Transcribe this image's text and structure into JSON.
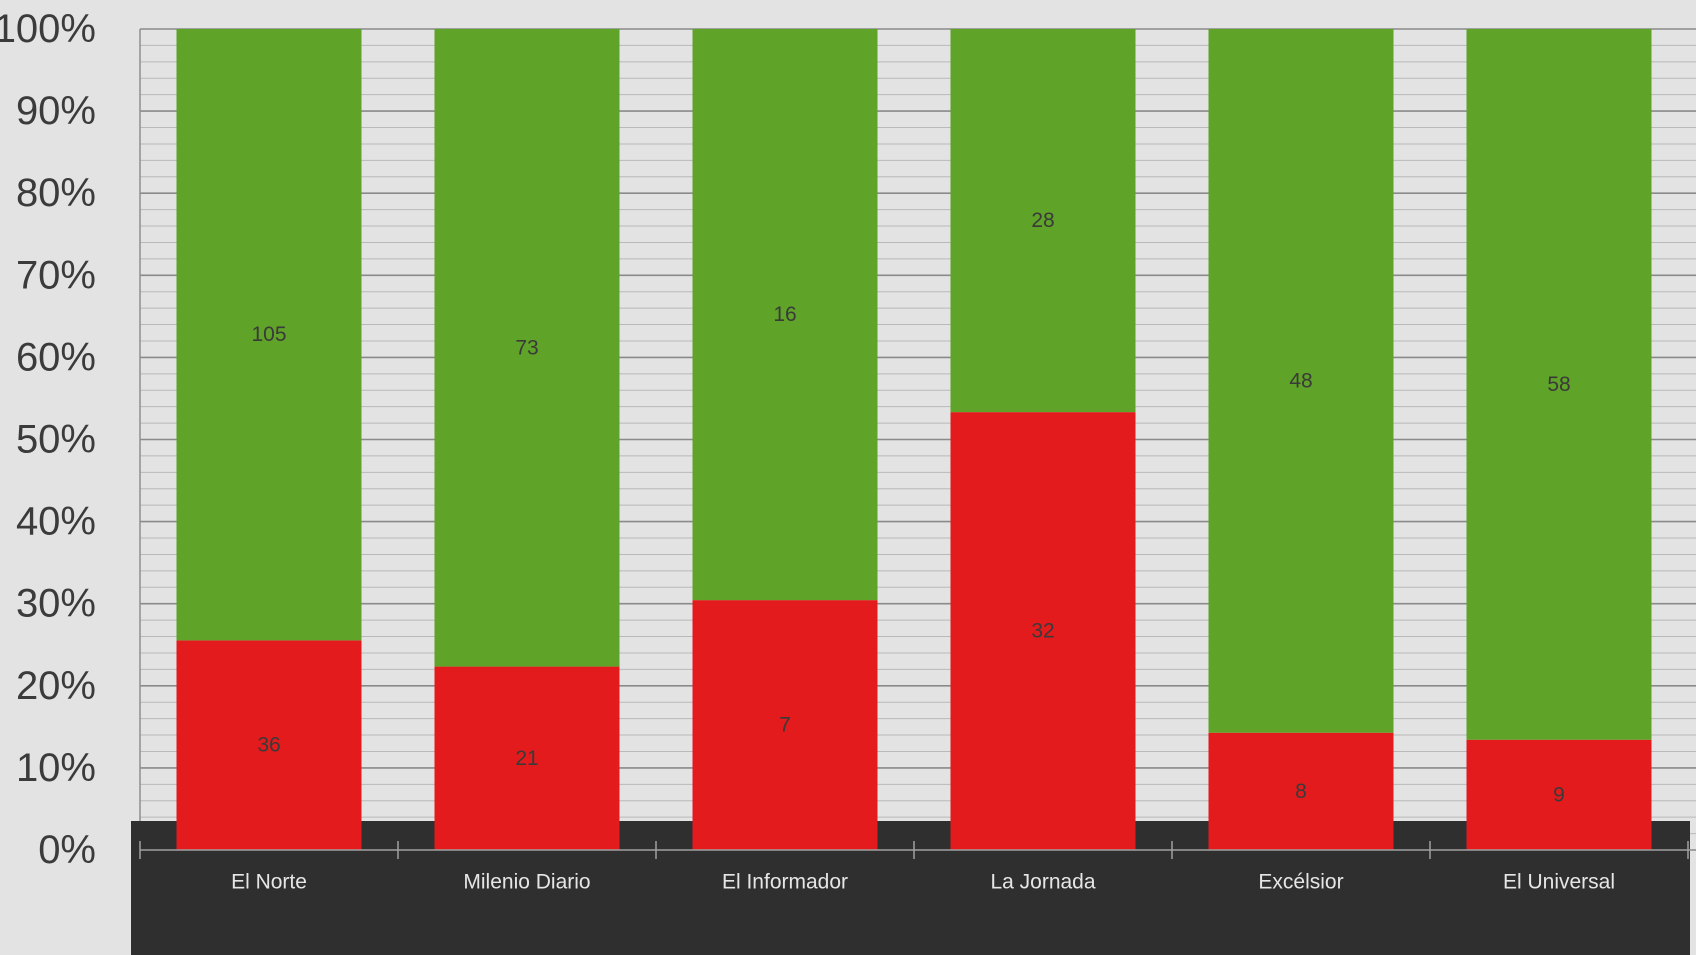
{
  "chart_data": {
    "type": "bar",
    "stacked": "percent",
    "categories": [
      "El Norte",
      "Milenio Diario",
      "El Informador",
      "La Jornada",
      "Excélsior",
      "El Universal"
    ],
    "series": [
      {
        "values": [
          36,
          21,
          7,
          32,
          8,
          9
        ],
        "color": "#e31b1c"
      },
      {
        "values": [
          105,
          73,
          16,
          28,
          48,
          58
        ],
        "color": "#5fa328"
      }
    ],
    "yticks": [
      "0%",
      "10%",
      "20%",
      "30%",
      "40%",
      "50%",
      "60%",
      "70%",
      "80%",
      "90%",
      "100%"
    ],
    "ylim": [
      0,
      100
    ],
    "grid": true,
    "minor_gridlines_per_major": 5,
    "title": "",
    "xlabel": "",
    "ylabel": "",
    "colors": {
      "background": "#e3e3e3",
      "major_grid": "#8a8a8a",
      "minor_grid": "#b9b9b9",
      "axis_band": "#2f2f2f",
      "axis_line": "#a0a0a0",
      "tick_label": "#3b3b3b",
      "category_label": "#e6e6e6",
      "data_label": "#3a3a3a"
    }
  }
}
